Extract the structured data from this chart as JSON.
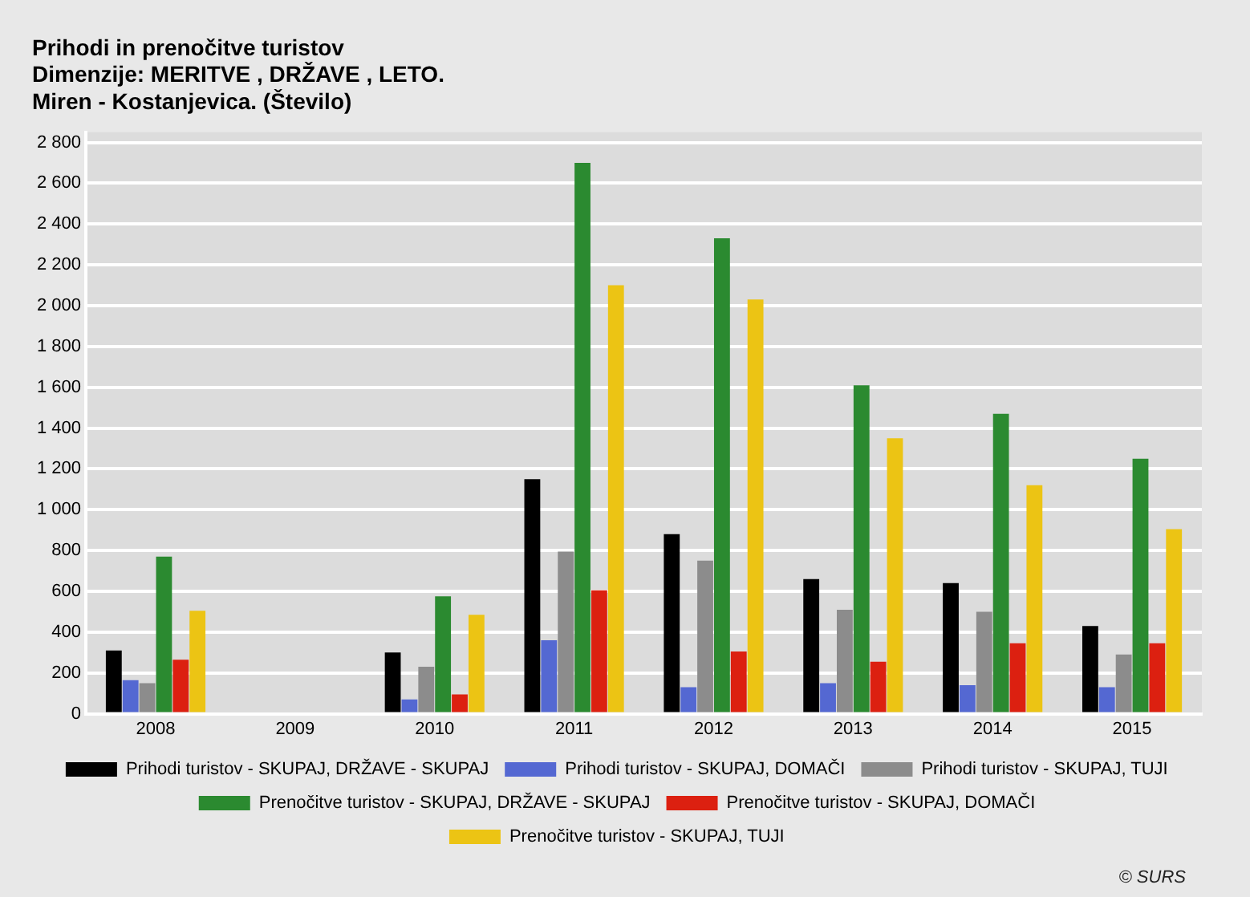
{
  "chart_data": {
    "type": "bar",
    "title": "Prihodi in prenočitve turistov",
    "subtitle": "Dimenzije: MERITVE , DRŽAVE , LETO.\nMiren - Kostanjevica. (Število)",
    "categories": [
      "2008",
      "2009",
      "2010",
      "2011",
      "2012",
      "2013",
      "2014",
      "2015"
    ],
    "series": [
      {
        "name": "Prihodi turistov - SKUPAJ, DRŽAVE - SKUPAJ",
        "color": "#000000",
        "values": [
          310,
          null,
          300,
          1150,
          880,
          660,
          640,
          430
        ]
      },
      {
        "name": "Prihodi turistov - SKUPAJ, DOMAČI",
        "color": "#5468d2",
        "values": [
          165,
          null,
          70,
          360,
          130,
          150,
          140,
          130
        ]
      },
      {
        "name": "Prihodi turistov - SKUPAJ, TUJI",
        "color": "#8c8c8c",
        "values": [
          150,
          null,
          230,
          795,
          750,
          510,
          500,
          290
        ]
      },
      {
        "name": "Prenočitve turistov - SKUPAJ, DRŽAVE - SKUPAJ",
        "color": "#2b8a30",
        "values": [
          770,
          null,
          575,
          2700,
          2330,
          1610,
          1470,
          1250
        ]
      },
      {
        "name": "Prenočitve turistov - SKUPAJ, DOMAČI",
        "color": "#dc2010",
        "values": [
          265,
          null,
          95,
          605,
          305,
          255,
          345,
          345
        ]
      },
      {
        "name": "Prenočitve turistov - SKUPAJ, TUJI",
        "color": "#ecc414",
        "values": [
          505,
          null,
          485,
          2100,
          2030,
          1350,
          1120,
          905
        ]
      }
    ],
    "ylim": [
      0,
      2850
    ],
    "yticks": [
      0,
      200,
      400,
      600,
      800,
      {
        "value": 1000,
        "label": "1 000"
      },
      {
        "value": 1200,
        "label": "1 200"
      },
      {
        "value": 1400,
        "label": "1 400"
      },
      {
        "value": 1600,
        "label": "1 600"
      },
      {
        "value": 1800,
        "label": "1 800"
      },
      {
        "value": 2000,
        "label": "2 000"
      },
      {
        "value": 2200,
        "label": "2 200"
      },
      {
        "value": 2400,
        "label": "2 400"
      },
      {
        "value": 2600,
        "label": "2 600"
      },
      {
        "value": 2800,
        "label": "2 800"
      }
    ],
    "grid": "y",
    "legend": "bottom",
    "annotations": [
      "© SURS"
    ]
  }
}
